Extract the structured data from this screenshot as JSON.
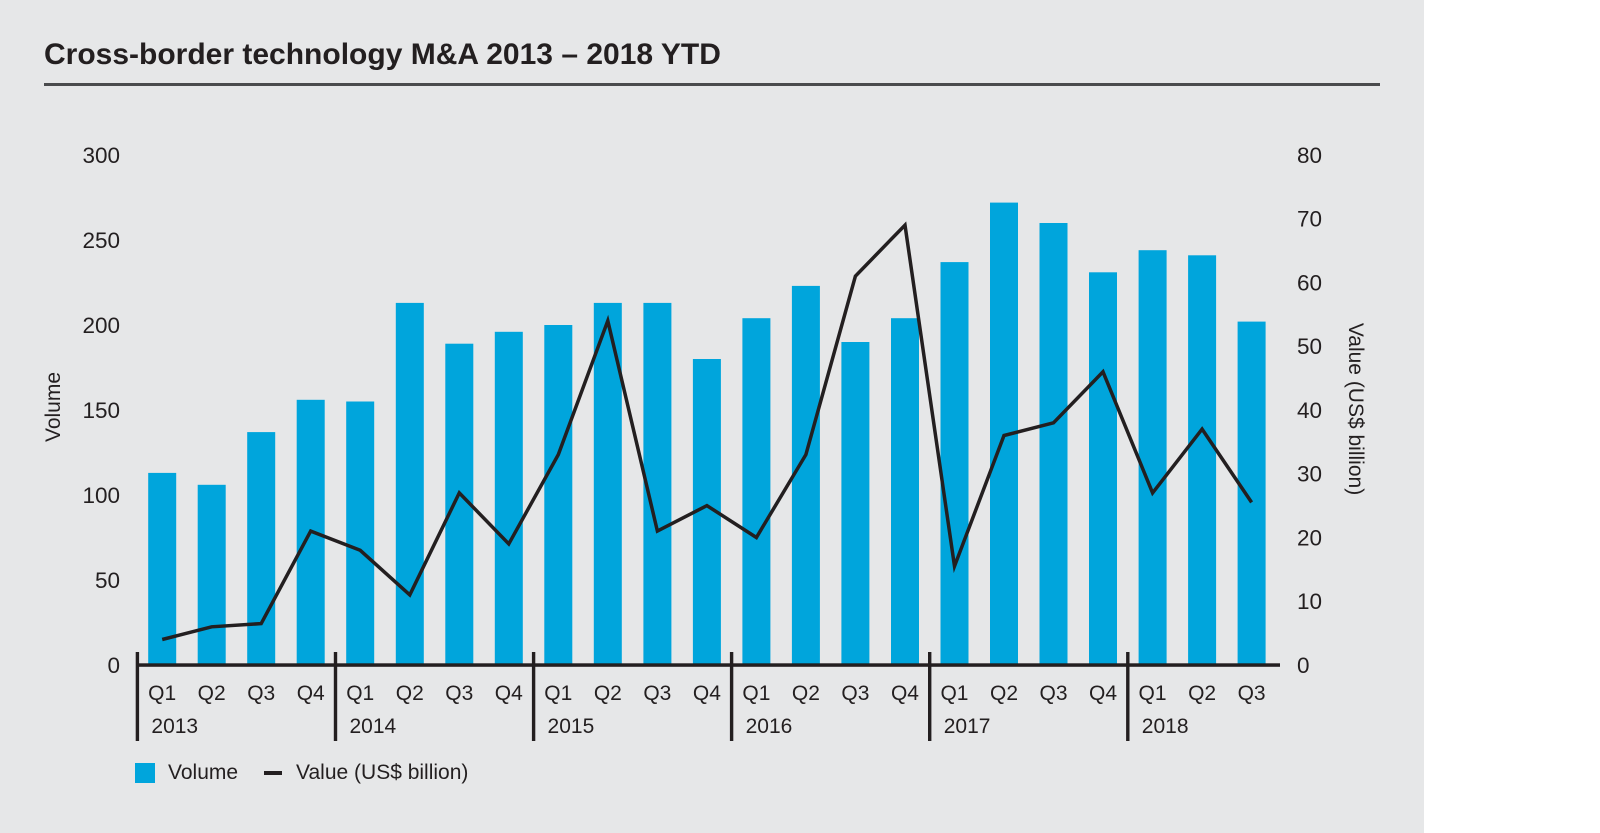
{
  "title": "Cross-border technology M&A 2013 – 2018 YTD",
  "colors": {
    "bar": "#00a5dc",
    "line": "#231f20",
    "text": "#231f20",
    "background": "#e6e7e8",
    "rule": "#4a4b4d"
  },
  "chart_data": {
    "type": "bar+line",
    "title": "Cross-border technology M&A 2013 – 2018 YTD",
    "x_groups": [
      {
        "year": "2013",
        "quarters": [
          "Q1",
          "Q2",
          "Q3",
          "Q4"
        ]
      },
      {
        "year": "2014",
        "quarters": [
          "Q1",
          "Q2",
          "Q3",
          "Q4"
        ]
      },
      {
        "year": "2015",
        "quarters": [
          "Q1",
          "Q2",
          "Q3",
          "Q4"
        ]
      },
      {
        "year": "2016",
        "quarters": [
          "Q1",
          "Q2",
          "Q3",
          "Q4"
        ]
      },
      {
        "year": "2017",
        "quarters": [
          "Q1",
          "Q2",
          "Q3",
          "Q4"
        ]
      },
      {
        "year": "2018",
        "quarters": [
          "Q1",
          "Q2",
          "Q3"
        ]
      }
    ],
    "series": [
      {
        "name": "Volume",
        "type": "bar",
        "axis": "left",
        "values": [
          113,
          106,
          137,
          156,
          155,
          213,
          189,
          196,
          200,
          213,
          213,
          180,
          204,
          223,
          190,
          204,
          237,
          272,
          260,
          231,
          244,
          241,
          202
        ]
      },
      {
        "name": "Value (US$ billion)",
        "type": "line",
        "axis": "right",
        "values": [
          4,
          6,
          6.5,
          21,
          18,
          11,
          27,
          19,
          33,
          54,
          21,
          25,
          20,
          33,
          61,
          69,
          15.5,
          36,
          38,
          46,
          27,
          37,
          25.5
        ]
      }
    ],
    "left_axis": {
      "caption": "Volume",
      "ticks": [
        300,
        250,
        200,
        150,
        100,
        50,
        0
      ],
      "range": [
        0,
        300
      ]
    },
    "right_axis": {
      "caption": "Value (US$ billion)",
      "ticks": [
        80,
        70,
        60,
        50,
        40,
        30,
        20,
        10,
        0
      ],
      "range": [
        0,
        80
      ]
    },
    "legend": [
      {
        "label": "Volume",
        "swatch": "square"
      },
      {
        "label": "Value (US$ billion)",
        "swatch": "dash"
      }
    ]
  }
}
